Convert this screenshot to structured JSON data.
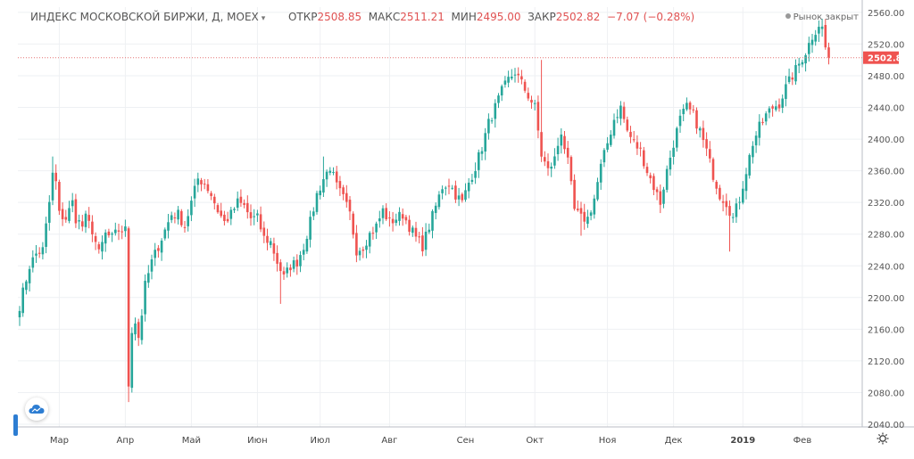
{
  "legend": {
    "symbol": "ИНДЕКС МОСКОВСКОЙ БИРЖИ, Д, MOEX",
    "open_label": "ОТКР",
    "open_value": "2508.85",
    "high_label": "МАКС",
    "high_value": "2511.21",
    "low_label": "МИН",
    "low_value": "2495.00",
    "close_label": "ЗАКР",
    "close_value": "2502.82",
    "change": "−7.07 (−0.28%)"
  },
  "market_status": "Рынок закрыт",
  "last_price_label": "2502.82",
  "icons": {
    "cloud": "cloud-icon",
    "settings": "gear-icon",
    "chevron": "chevron-down-icon"
  },
  "colors": {
    "up": "#26a69a",
    "down": "#ef5350",
    "price_line": "#e57373",
    "axis_text": "#555555"
  },
  "chart_data": {
    "type": "candlestick",
    "title": "ИНДЕКС МОСКОВСКОЙ БИРЖИ, Д, MOEX",
    "ylim": [
      2040,
      2570
    ],
    "y_ticks": [
      2040,
      2080,
      2120,
      2160,
      2200,
      2240,
      2280,
      2320,
      2360,
      2400,
      2440,
      2480,
      2520,
      2560
    ],
    "x_ticks": [
      {
        "label": "Мар",
        "index": 12
      },
      {
        "label": "Апр",
        "index": 32
      },
      {
        "label": "Май",
        "index": 52
      },
      {
        "label": "Июн",
        "index": 72
      },
      {
        "label": "Июл",
        "index": 91
      },
      {
        "label": "Авг",
        "index": 112
      },
      {
        "label": "Сен",
        "index": 135
      },
      {
        "label": "Окт",
        "index": 156
      },
      {
        "label": "Ноя",
        "index": 178
      },
      {
        "label": "Дек",
        "index": 198
      },
      {
        "label": "2019",
        "index": 219,
        "bold": true
      },
      {
        "label": "Фев",
        "index": 237
      }
    ],
    "last_price": 2502.82,
    "waypoints": [
      [
        0,
        2190
      ],
      [
        3,
        2240
      ],
      [
        5,
        2255
      ],
      [
        7,
        2260
      ],
      [
        9,
        2320
      ],
      [
        10,
        2355
      ],
      [
        11,
        2345
      ],
      [
        12,
        2305
      ],
      [
        14,
        2300
      ],
      [
        16,
        2320
      ],
      [
        17,
        2300
      ],
      [
        19,
        2290
      ],
      [
        20,
        2300
      ],
      [
        22,
        2285
      ],
      [
        24,
        2255
      ],
      [
        26,
        2280
      ],
      [
        28,
        2275
      ],
      [
        30,
        2285
      ],
      [
        32,
        2285
      ],
      [
        33,
        2090
      ],
      [
        34,
        2160
      ],
      [
        35,
        2170
      ],
      [
        36,
        2150
      ],
      [
        37,
        2180
      ],
      [
        38,
        2215
      ],
      [
        40,
        2245
      ],
      [
        42,
        2265
      ],
      [
        44,
        2285
      ],
      [
        46,
        2305
      ],
      [
        48,
        2305
      ],
      [
        50,
        2290
      ],
      [
        52,
        2320
      ],
      [
        54,
        2350
      ],
      [
        56,
        2345
      ],
      [
        58,
        2330
      ],
      [
        60,
        2310
      ],
      [
        62,
        2295
      ],
      [
        64,
        2305
      ],
      [
        66,
        2320
      ],
      [
        68,
        2315
      ],
      [
        70,
        2300
      ],
      [
        72,
        2300
      ],
      [
        74,
        2275
      ],
      [
        76,
        2270
      ],
      [
        78,
        2245
      ],
      [
        80,
        2225
      ],
      [
        82,
        2240
      ],
      [
        84,
        2245
      ],
      [
        86,
        2265
      ],
      [
        88,
        2295
      ],
      [
        90,
        2330
      ],
      [
        92,
        2350
      ],
      [
        94,
        2365
      ],
      [
        96,
        2340
      ],
      [
        98,
        2325
      ],
      [
        100,
        2305
      ],
      [
        102,
        2260
      ],
      [
        104,
        2265
      ],
      [
        106,
        2280
      ],
      [
        108,
        2290
      ],
      [
        110,
        2310
      ],
      [
        112,
        2295
      ],
      [
        114,
        2300
      ],
      [
        116,
        2305
      ],
      [
        118,
        2290
      ],
      [
        120,
        2275
      ],
      [
        122,
        2265
      ],
      [
        124,
        2290
      ],
      [
        126,
        2315
      ],
      [
        128,
        2340
      ],
      [
        130,
        2345
      ],
      [
        132,
        2330
      ],
      [
        134,
        2320
      ],
      [
        136,
        2345
      ],
      [
        138,
        2365
      ],
      [
        140,
        2390
      ],
      [
        142,
        2420
      ],
      [
        144,
        2440
      ],
      [
        146,
        2460
      ],
      [
        148,
        2475
      ],
      [
        150,
        2485
      ],
      [
        152,
        2470
      ],
      [
        154,
        2455
      ],
      [
        156,
        2440
      ],
      [
        158,
        2380
      ],
      [
        160,
        2360
      ],
      [
        162,
        2375
      ],
      [
        164,
        2410
      ],
      [
        166,
        2370
      ],
      [
        168,
        2310
      ],
      [
        170,
        2300
      ],
      [
        172,
        2300
      ],
      [
        174,
        2325
      ],
      [
        176,
        2365
      ],
      [
        178,
        2395
      ],
      [
        180,
        2425
      ],
      [
        182,
        2440
      ],
      [
        184,
        2410
      ],
      [
        186,
        2395
      ],
      [
        188,
        2385
      ],
      [
        190,
        2360
      ],
      [
        192,
        2340
      ],
      [
        194,
        2320
      ],
      [
        196,
        2360
      ],
      [
        198,
        2395
      ],
      [
        200,
        2425
      ],
      [
        202,
        2440
      ],
      [
        204,
        2430
      ],
      [
        206,
        2410
      ],
      [
        208,
        2385
      ],
      [
        210,
        2355
      ],
      [
        212,
        2330
      ],
      [
        214,
        2320
      ],
      [
        216,
        2300
      ],
      [
        218,
        2325
      ],
      [
        220,
        2360
      ],
      [
        222,
        2395
      ],
      [
        224,
        2415
      ],
      [
        226,
        2430
      ],
      [
        228,
        2440
      ],
      [
        230,
        2445
      ],
      [
        232,
        2465
      ],
      [
        234,
        2480
      ],
      [
        236,
        2495
      ],
      [
        238,
        2510
      ],
      [
        240,
        2530
      ],
      [
        242,
        2545
      ],
      [
        243,
        2540
      ],
      [
        244,
        2515
      ],
      [
        245,
        2503
      ]
    ],
    "notable_lows": [
      [
        33,
        2068
      ],
      [
        34,
        2080
      ],
      [
        215,
        2258
      ],
      [
        170,
        2278
      ],
      [
        79,
        2192
      ]
    ],
    "notable_highs": [
      [
        10,
        2378
      ],
      [
        92,
        2378
      ],
      [
        158,
        2500
      ],
      [
        243,
        2552
      ]
    ]
  }
}
